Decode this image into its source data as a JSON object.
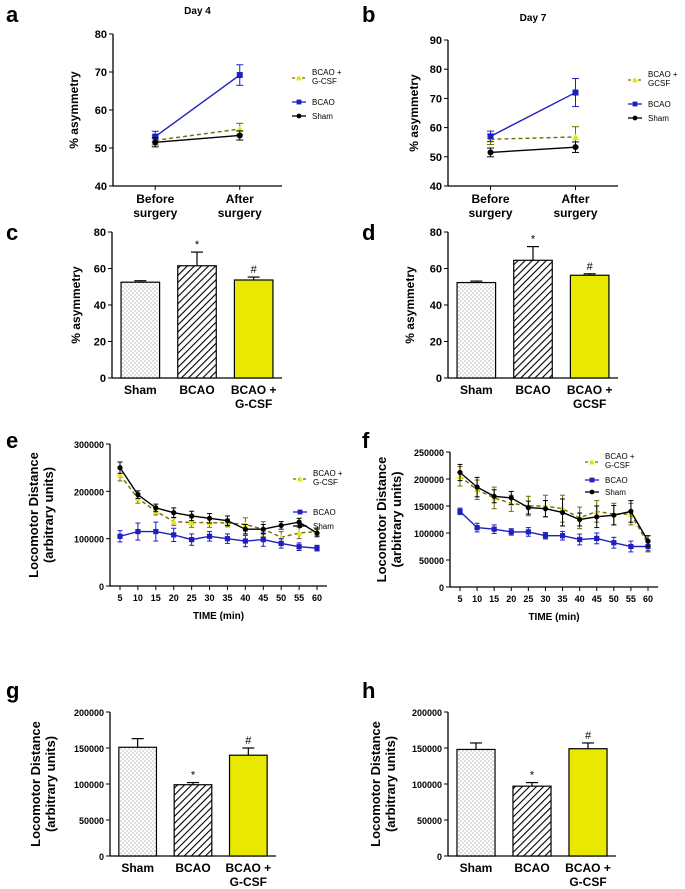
{
  "panel_labels": [
    "a",
    "b",
    "c",
    "d",
    "e",
    "f",
    "g",
    "h"
  ],
  "colors": {
    "sham": "#000000",
    "bcao": "#1f1fbf",
    "gcsf": "#e8e800",
    "gcsf_line": "#6e6e00"
  },
  "chart_data": [
    {
      "panel": "a",
      "type": "line",
      "title": "Day 4",
      "ylabel": "% asymmetry",
      "categories": [
        "Before\nsurgery",
        "After\nsurgery"
      ],
      "ylim": [
        40,
        80
      ],
      "yticks": [
        40,
        50,
        60,
        70,
        80
      ],
      "legend": [
        "BCAO +\nG-CSF",
        "BCAO",
        "Sham"
      ],
      "series": [
        {
          "name": "BCAO + G-CSF",
          "values": [
            52,
            55
          ],
          "errors": [
            1.2,
            1.5
          ]
        },
        {
          "name": "BCAO",
          "values": [
            53,
            69.2
          ],
          "errors": [
            1.4,
            2.7
          ]
        },
        {
          "name": "Sham",
          "values": [
            51.5,
            53.3
          ],
          "errors": [
            1.2,
            1.2
          ]
        }
      ]
    },
    {
      "panel": "b",
      "type": "line",
      "title": "Day 7",
      "ylabel": "% asymmetry",
      "categories": [
        "Before\nsurgery",
        "After\nsurgery"
      ],
      "ylim": [
        40,
        90
      ],
      "yticks": [
        40,
        50,
        60,
        70,
        80,
        90
      ],
      "legend": [
        "BCAO +\nGCSF",
        "BCAO",
        "Sham"
      ],
      "series": [
        {
          "name": "BCAO + GCSF",
          "values": [
            56,
            56.8
          ],
          "errors": [
            1.8,
            3.5
          ]
        },
        {
          "name": "BCAO",
          "values": [
            57,
            72
          ],
          "errors": [
            1.8,
            4.8
          ]
        },
        {
          "name": "Sham",
          "values": [
            51.5,
            53.3
          ],
          "errors": [
            1.5,
            1.8
          ]
        }
      ]
    },
    {
      "panel": "c",
      "type": "bar",
      "ylabel": "% asymmetry",
      "categories": [
        "Sham",
        "BCAO",
        "BCAO +\nG-CSF"
      ],
      "ylim": [
        0,
        80
      ],
      "yticks": [
        0,
        20,
        40,
        60,
        80
      ],
      "values": [
        52.5,
        61.5,
        53.7
      ],
      "errors": [
        0.8,
        7.5,
        1.6
      ],
      "annotations": [
        "",
        "*",
        "#"
      ]
    },
    {
      "panel": "d",
      "type": "bar",
      "ylabel": "% asymmetry",
      "categories": [
        "Sham",
        "BCAO",
        "BCAO +\nGCSF"
      ],
      "ylim": [
        0,
        80
      ],
      "yticks": [
        0,
        20,
        40,
        60,
        80
      ],
      "values": [
        52.3,
        64.5,
        56.3
      ],
      "errors": [
        0.8,
        7.5,
        0.8
      ],
      "annotations": [
        "",
        "*",
        "#"
      ]
    },
    {
      "panel": "e",
      "type": "line",
      "ylabel": "Locomotor Distance\n(arbitrary units)",
      "xlabel": "TIME (min)",
      "x": [
        5,
        10,
        15,
        20,
        25,
        30,
        35,
        40,
        45,
        50,
        55,
        60
      ],
      "ylim": [
        0,
        300000
      ],
      "yticks": [
        0,
        100000,
        200000,
        300000
      ],
      "legend": [
        "BCAO +\nG-CSF",
        "BCAO",
        "Sham"
      ],
      "series": [
        {
          "name": "BCAO + G-CSF",
          "values": [
            235000,
            185000,
            158000,
            136000,
            134000,
            134000,
            133000,
            130000,
            120000,
            103000,
            112000,
            115000
          ],
          "errors": [
            13000,
            10000,
            8000,
            8000,
            10000,
            10000,
            8000,
            14000,
            16000,
            12000,
            12000,
            8000
          ]
        },
        {
          "name": "BCAO",
          "values": [
            105000,
            115000,
            115000,
            108000,
            98000,
            105000,
            100000,
            95000,
            98000,
            90000,
            83000,
            80000
          ],
          "errors": [
            12000,
            18000,
            20000,
            14000,
            12000,
            10000,
            10000,
            12000,
            14000,
            10000,
            8000,
            6000
          ]
        },
        {
          "name": "Sham",
          "values": [
            250000,
            193000,
            165000,
            155000,
            148000,
            143000,
            138000,
            120000,
            120000,
            128000,
            135000,
            112000
          ],
          "errors": [
            12000,
            8000,
            8000,
            10000,
            10000,
            10000,
            10000,
            10000,
            10000,
            8000,
            8000,
            8000
          ]
        }
      ]
    },
    {
      "panel": "f",
      "type": "line",
      "ylabel": "Locomotor Distance\n(arbitrary units)",
      "xlabel": "TIME (min)",
      "x": [
        5,
        10,
        15,
        20,
        25,
        30,
        35,
        40,
        45,
        50,
        55,
        60
      ],
      "ylim": [
        0,
        250000
      ],
      "yticks": [
        0,
        50000,
        100000,
        150000,
        200000,
        250000
      ],
      "legend": [
        "BCAO +\nG-CSF",
        "BCAO",
        "Sham"
      ],
      "series": [
        {
          "name": "BCAO + G-CSF",
          "values": [
            205000,
            180000,
            165000,
            155000,
            150000,
            150000,
            145000,
            128000,
            140000,
            135000,
            135000,
            80000
          ],
          "errors": [
            18000,
            18000,
            20000,
            15000,
            18000,
            20000,
            25000,
            20000,
            20000,
            20000,
            20000,
            15000
          ]
        },
        {
          "name": "BCAO",
          "values": [
            140000,
            110000,
            107000,
            102000,
            102000,
            95000,
            95000,
            88000,
            90000,
            82000,
            75000,
            75000
          ],
          "errors": [
            6000,
            8000,
            8000,
            6000,
            8000,
            6000,
            8000,
            10000,
            10000,
            10000,
            10000,
            8000
          ]
        },
        {
          "name": "Sham",
          "values": [
            212000,
            185000,
            168000,
            165000,
            147000,
            145000,
            138000,
            125000,
            130000,
            133000,
            140000,
            85000
          ],
          "errors": [
            15000,
            18000,
            12000,
            12000,
            12000,
            15000,
            25000,
            12000,
            20000,
            18000,
            20000,
            10000
          ]
        }
      ]
    },
    {
      "panel": "g",
      "type": "bar",
      "ylabel": "Locomotor Distance\n(arbitrary units)",
      "categories": [
        "Sham",
        "BCAO",
        "BCAO +\nG-CSF"
      ],
      "ylim": [
        0,
        200000
      ],
      "yticks": [
        0,
        50000,
        100000,
        150000,
        200000
      ],
      "values": [
        151000,
        99000,
        140000
      ],
      "errors": [
        12000,
        3000,
        10000
      ],
      "annotations": [
        "",
        "*",
        "#"
      ]
    },
    {
      "panel": "h",
      "type": "bar",
      "ylabel": "Locomotor Distance\n(arbitrary units)",
      "categories": [
        "Sham",
        "BCAO",
        "BCAO +\nG-CSF"
      ],
      "ylim": [
        0,
        200000
      ],
      "yticks": [
        0,
        50000,
        100000,
        150000,
        200000
      ],
      "values": [
        148000,
        97000,
        149000
      ],
      "errors": [
        9000,
        5000,
        8000
      ],
      "annotations": [
        "",
        "*",
        "#"
      ]
    }
  ]
}
